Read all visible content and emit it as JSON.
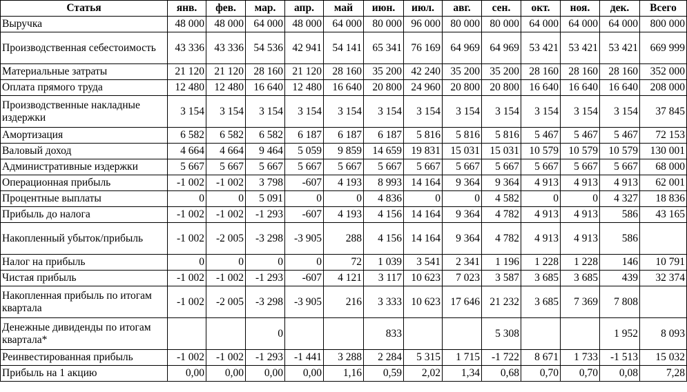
{
  "header": [
    "Статья",
    "янв.",
    "фев.",
    "мар.",
    "апр.",
    "май",
    "июн.",
    "июл.",
    "авг.",
    "сен.",
    "окт.",
    "ноя.",
    "дек.",
    "Всего"
  ],
  "rows": [
    {
      "label": "Выручка",
      "lines": 1,
      "values": [
        "48 000",
        "48 000",
        "64 000",
        "48 000",
        "64 000",
        "80 000",
        "96 000",
        "80 000",
        "80 000",
        "64 000",
        "64 000",
        "64 000",
        "800 000"
      ]
    },
    {
      "label": "Производственная себестоимость",
      "lines": 2,
      "values": [
        "43 336",
        "43 336",
        "54 536",
        "42 941",
        "54 141",
        "65 341",
        "76 169",
        "64 969",
        "64 969",
        "53 421",
        "53 421",
        "53 421",
        "669 999"
      ]
    },
    {
      "label": "Материальные затраты",
      "lines": 1,
      "values": [
        "21 120",
        "21 120",
        "28 160",
        "21 120",
        "28 160",
        "35 200",
        "42 240",
        "35 200",
        "35 200",
        "28 160",
        "28 160",
        "28 160",
        "352 000"
      ]
    },
    {
      "label": "Оплата прямого труда",
      "lines": 1,
      "values": [
        "12 480",
        "12 480",
        "16 640",
        "12 480",
        "16 640",
        "20 800",
        "24 960",
        "20 800",
        "20 800",
        "16 640",
        "16 640",
        "16 640",
        "208 000"
      ]
    },
    {
      "label": "Производственные накладные издержки",
      "lines": 2,
      "values": [
        "3 154",
        "3 154",
        "3 154",
        "3 154",
        "3 154",
        "3 154",
        "3 154",
        "3 154",
        "3 154",
        "3 154",
        "3 154",
        "3 154",
        "37 845"
      ]
    },
    {
      "label": "Амортизация",
      "lines": 1,
      "values": [
        "6 582",
        "6 582",
        "6 582",
        "6 187",
        "6 187",
        "6 187",
        "5 816",
        "5 816",
        "5 816",
        "5 467",
        "5 467",
        "5 467",
        "72 153"
      ]
    },
    {
      "label": "Валовый доход",
      "lines": 1,
      "values": [
        "4 664",
        "4 664",
        "9 464",
        "5 059",
        "9 859",
        "14 659",
        "19 831",
        "15 031",
        "15 031",
        "10 579",
        "10 579",
        "10 579",
        "130 001"
      ]
    },
    {
      "label": "Административные издержки",
      "lines": 1,
      "values": [
        "5 667",
        "5 667",
        "5 667",
        "5 667",
        "5 667",
        "5 667",
        "5 667",
        "5 667",
        "5 667",
        "5 667",
        "5 667",
        "5 667",
        "68 000"
      ]
    },
    {
      "label": "Операционная прибыль",
      "lines": 1,
      "values": [
        "-1 002",
        "-1 002",
        "3 798",
        "-607",
        "4 193",
        "8 993",
        "14 164",
        "9 364",
        "9 364",
        "4 913",
        "4 913",
        "4 913",
        "62 001"
      ]
    },
    {
      "label": "Процентные выплаты",
      "lines": 1,
      "values": [
        "0",
        "0",
        "5 091",
        "0",
        "0",
        "4 836",
        "0",
        "0",
        "4 582",
        "0",
        "0",
        "4 327",
        "18 836"
      ]
    },
    {
      "label": "Прибыль до налога",
      "lines": 1,
      "values": [
        "-1 002",
        "-1 002",
        "-1 293",
        "-607",
        "4 193",
        "4 156",
        "14 164",
        "9 364",
        "4 782",
        "4 913",
        "4 913",
        "586",
        "43 165"
      ]
    },
    {
      "label": "Накопленный убыток/прибыль",
      "lines": 2,
      "values": [
        "-1 002",
        "-2 005",
        "-3 298",
        "-3 905",
        "288",
        "4 156",
        "14 164",
        "9 364",
        "4 782",
        "4 913",
        "4 913",
        "586",
        ""
      ]
    },
    {
      "label": "Налог на прибыль",
      "lines": 1,
      "values": [
        "0",
        "0",
        "0",
        "0",
        "72",
        "1 039",
        "3 541",
        "2 341",
        "1 196",
        "1 228",
        "1 228",
        "146",
        "10 791"
      ]
    },
    {
      "label": "Чистая прибыль",
      "lines": 1,
      "values": [
        "-1 002",
        "-1 002",
        "-1 293",
        "-607",
        "4 121",
        "3 117",
        "10 623",
        "7 023",
        "3 587",
        "3 685",
        "3 685",
        "439",
        "32 374"
      ]
    },
    {
      "label": "Накопленная прибыль по итогам квартала",
      "lines": 2,
      "values": [
        "-1 002",
        "-2 005",
        "-3 298",
        "-3 905",
        "216",
        "3 333",
        "10 623",
        "17 646",
        "21 232",
        "3 685",
        "7 369",
        "7 808",
        ""
      ]
    },
    {
      "label": "Денежные дивиденды по итогам квартала*",
      "lines": 2,
      "values": [
        "",
        "",
        "0",
        "",
        "",
        "833",
        "",
        "",
        "5 308",
        "",
        "",
        "1 952",
        "8 093"
      ]
    },
    {
      "label": "Реинвестированная прибыль",
      "lines": 1,
      "values": [
        "-1 002",
        "-1 002",
        "-1 293",
        "-1 441",
        "3 288",
        "2 284",
        "5 315",
        "1 715",
        "-1 722",
        "8 671",
        "1 733",
        "-1 513",
        "15 032"
      ]
    },
    {
      "label": "Прибыль на 1 акцию",
      "lines": 1,
      "values": [
        "0,00",
        "0,00",
        "0,00",
        "0,00",
        "1,16",
        "0,59",
        "2,02",
        "1,34",
        "0,68",
        "0,70",
        "0,70",
        "0,08",
        "7,28"
      ]
    }
  ]
}
